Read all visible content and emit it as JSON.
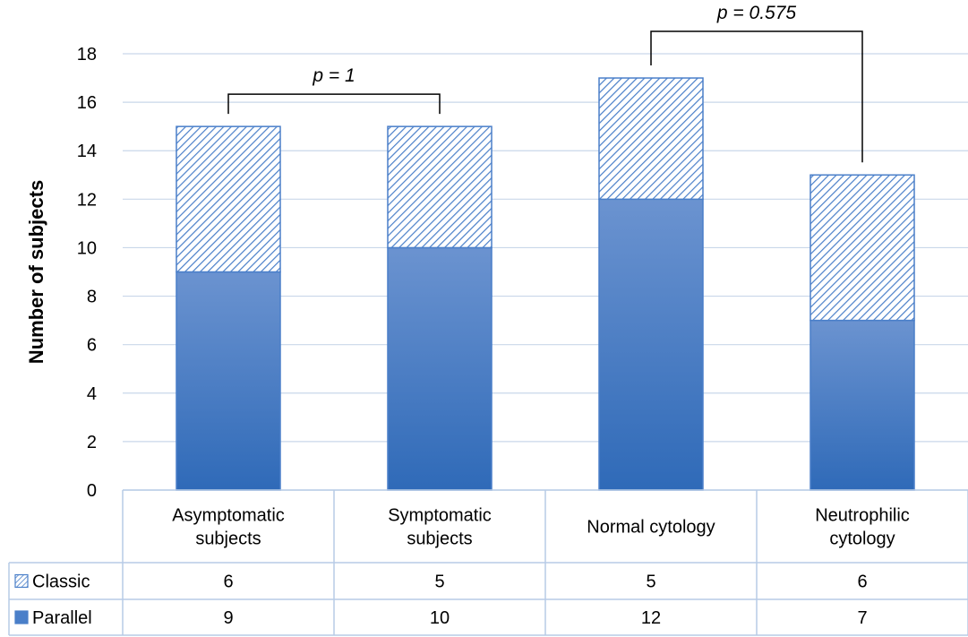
{
  "chart_data": {
    "type": "bar",
    "stacked": true,
    "ylabel": "Number of subjects",
    "ylim": [
      0,
      18
    ],
    "yticks": [
      0,
      2,
      4,
      6,
      8,
      10,
      12,
      14,
      16,
      18
    ],
    "grid": true,
    "categories": [
      [
        "Asymptomatic",
        "subjects"
      ],
      [
        "Symptomatic",
        "subjects"
      ],
      [
        "Normal cytology"
      ],
      [
        "Neutrophilic",
        "cytology"
      ]
    ],
    "series": [
      {
        "name": "Parallel",
        "values": [
          9,
          10,
          12,
          7
        ],
        "color": "#4a7fc9",
        "pattern": "solid"
      },
      {
        "name": "Classic",
        "values": [
          6,
          5,
          5,
          6
        ],
        "color": "#4a7fc9",
        "pattern": "hatched"
      }
    ],
    "annotations": [
      {
        "text": "p = 1",
        "from": 0,
        "to": 1
      },
      {
        "text": "p = 0.575",
        "from": 2,
        "to": 3
      }
    ],
    "data_table": true
  }
}
